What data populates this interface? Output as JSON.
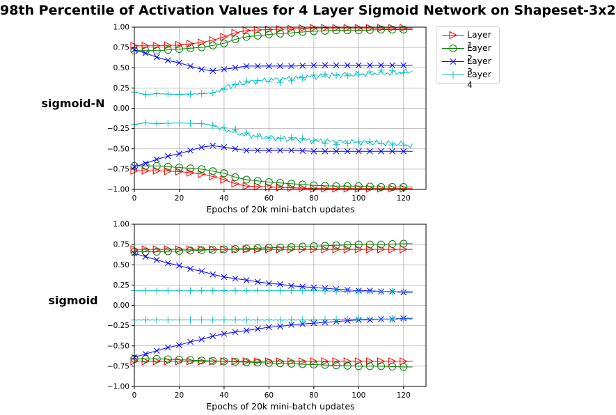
{
  "title": "98th Percentile of Activation Values for 4 Layer Sigmoid Network on Shapeset-3x2",
  "colors": {
    "Layer 1": "#ff0000",
    "Layer 2": "#008000",
    "Layer 3": "#0000ff",
    "Layer 4": "#00bfbf",
    "black": "#000000"
  },
  "chart_data": [
    {
      "type": "line",
      "row_label": "sigmoid-N",
      "xlabel": "Epochs of 20k mini-batch updates",
      "ylabel": "",
      "xlim": [
        0,
        130
      ],
      "ylim": [
        -1.0,
        1.0
      ],
      "xticks": [
        0,
        20,
        40,
        60,
        80,
        100,
        120
      ],
      "yticks": [
        -1.0,
        -0.75,
        -0.5,
        -0.25,
        0.0,
        0.25,
        0.5,
        0.75,
        1.0
      ],
      "xtick_labels": [
        "0",
        "20",
        "40",
        "60",
        "80",
        "100",
        "120"
      ],
      "ytick_labels": [
        "−1.00",
        "−0.75",
        "−0.50",
        "−0.25",
        "0.00",
        "0.25",
        "0.50",
        "0.75",
        "1.00"
      ],
      "grid": true,
      "legend": {
        "position": "outside-right",
        "entries": [
          "Layer 1",
          "Layer 2",
          "Layer 3",
          "Layer 4"
        ]
      },
      "series": [
        {
          "name": "Layer 1",
          "marker": "triangle-right",
          "upper": [
            [
              0,
              0.77
            ],
            [
              10,
              0.77
            ],
            [
              20,
              0.78
            ],
            [
              30,
              0.81
            ],
            [
              35,
              0.84
            ],
            [
              40,
              0.88
            ],
            [
              45,
              0.93
            ],
            [
              50,
              0.96
            ],
            [
              60,
              0.97
            ],
            [
              70,
              0.98
            ],
            [
              80,
              0.99
            ],
            [
              90,
              0.99
            ],
            [
              100,
              0.99
            ],
            [
              110,
              0.99
            ],
            [
              120,
              0.99
            ],
            [
              124,
              0.99
            ]
          ],
          "lower": [
            [
              0,
              -0.77
            ],
            [
              10,
              -0.77
            ],
            [
              20,
              -0.78
            ],
            [
              30,
              -0.81
            ],
            [
              35,
              -0.84
            ],
            [
              40,
              -0.88
            ],
            [
              45,
              -0.93
            ],
            [
              50,
              -0.96
            ],
            [
              60,
              -0.97
            ],
            [
              70,
              -0.98
            ],
            [
              80,
              -0.99
            ],
            [
              90,
              -0.99
            ],
            [
              100,
              -0.99
            ],
            [
              110,
              -0.99
            ],
            [
              120,
              -0.99
            ],
            [
              124,
              -0.99
            ]
          ]
        },
        {
          "name": "Layer 2",
          "marker": "circle",
          "upper": [
            [
              0,
              0.71
            ],
            [
              10,
              0.71
            ],
            [
              20,
              0.73
            ],
            [
              30,
              0.75
            ],
            [
              40,
              0.8
            ],
            [
              45,
              0.85
            ],
            [
              50,
              0.88
            ],
            [
              60,
              0.91
            ],
            [
              70,
              0.93
            ],
            [
              80,
              0.95
            ],
            [
              90,
              0.96
            ],
            [
              100,
              0.96
            ],
            [
              110,
              0.97
            ],
            [
              120,
              0.97
            ],
            [
              124,
              0.97
            ]
          ],
          "lower": [
            [
              0,
              -0.71
            ],
            [
              10,
              -0.71
            ],
            [
              20,
              -0.73
            ],
            [
              30,
              -0.75
            ],
            [
              40,
              -0.8
            ],
            [
              45,
              -0.85
            ],
            [
              50,
              -0.88
            ],
            [
              60,
              -0.91
            ],
            [
              70,
              -0.93
            ],
            [
              80,
              -0.95
            ],
            [
              90,
              -0.96
            ],
            [
              100,
              -0.96
            ],
            [
              110,
              -0.97
            ],
            [
              120,
              -0.97
            ],
            [
              124,
              -0.97
            ]
          ]
        },
        {
          "name": "Layer 3",
          "marker": "x",
          "upper": [
            [
              0,
              0.72
            ],
            [
              5,
              0.68
            ],
            [
              10,
              0.63
            ],
            [
              15,
              0.59
            ],
            [
              20,
              0.56
            ],
            [
              25,
              0.52
            ],
            [
              30,
              0.48
            ],
            [
              35,
              0.46
            ],
            [
              40,
              0.48
            ],
            [
              45,
              0.5
            ],
            [
              50,
              0.52
            ],
            [
              60,
              0.52
            ],
            [
              70,
              0.52
            ],
            [
              80,
              0.53
            ],
            [
              90,
              0.53
            ],
            [
              100,
              0.53
            ],
            [
              110,
              0.53
            ],
            [
              120,
              0.53
            ],
            [
              124,
              0.53
            ]
          ],
          "lower": [
            [
              0,
              -0.72
            ],
            [
              5,
              -0.68
            ],
            [
              10,
              -0.63
            ],
            [
              15,
              -0.59
            ],
            [
              20,
              -0.56
            ],
            [
              25,
              -0.52
            ],
            [
              30,
              -0.48
            ],
            [
              35,
              -0.46
            ],
            [
              40,
              -0.48
            ],
            [
              45,
              -0.5
            ],
            [
              50,
              -0.52
            ],
            [
              60,
              -0.52
            ],
            [
              70,
              -0.52
            ],
            [
              80,
              -0.53
            ],
            [
              90,
              -0.53
            ],
            [
              100,
              -0.53
            ],
            [
              110,
              -0.53
            ],
            [
              120,
              -0.53
            ],
            [
              124,
              -0.53
            ]
          ]
        },
        {
          "name": "Layer 4",
          "marker": "plus",
          "upper": [
            [
              0,
              0.2
            ],
            [
              5,
              0.17
            ],
            [
              10,
              0.18
            ],
            [
              20,
              0.17
            ],
            [
              30,
              0.18
            ],
            [
              35,
              0.19
            ],
            [
              40,
              0.25
            ],
            [
              45,
              0.29
            ],
            [
              50,
              0.32
            ],
            [
              60,
              0.35
            ],
            [
              70,
              0.37
            ],
            [
              80,
              0.39
            ],
            [
              90,
              0.41
            ],
            [
              100,
              0.42
            ],
            [
              110,
              0.43
            ],
            [
              120,
              0.44
            ],
            [
              124,
              0.46
            ]
          ],
          "lower": [
            [
              0,
              -0.2
            ],
            [
              5,
              -0.18
            ],
            [
              10,
              -0.19
            ],
            [
              20,
              -0.18
            ],
            [
              30,
              -0.19
            ],
            [
              35,
              -0.21
            ],
            [
              40,
              -0.26
            ],
            [
              45,
              -0.3
            ],
            [
              50,
              -0.33
            ],
            [
              60,
              -0.36
            ],
            [
              70,
              -0.38
            ],
            [
              80,
              -0.4
            ],
            [
              90,
              -0.41
            ],
            [
              100,
              -0.42
            ],
            [
              110,
              -0.43
            ],
            [
              120,
              -0.44
            ],
            [
              124,
              -0.47
            ]
          ]
        }
      ]
    },
    {
      "type": "line",
      "row_label": "sigmoid",
      "xlabel": "Epochs of 20k mini-batch updates",
      "ylabel": "",
      "xlim": [
        0,
        130
      ],
      "ylim": [
        -1.0,
        1.0
      ],
      "xticks": [
        0,
        20,
        40,
        60,
        80,
        100,
        120
      ],
      "yticks": [
        -1.0,
        -0.75,
        -0.5,
        -0.25,
        0.0,
        0.25,
        0.5,
        0.75,
        1.0
      ],
      "xtick_labels": [
        "0",
        "20",
        "40",
        "60",
        "80",
        "100",
        "120"
      ],
      "ytick_labels": [
        "−1.00",
        "−0.75",
        "−0.50",
        "−0.25",
        "0.00",
        "0.25",
        "0.50",
        "0.75",
        "1.00"
      ],
      "grid": true,
      "series": [
        {
          "name": "Layer 1",
          "marker": "triangle-right",
          "upper": [
            [
              0,
              0.69
            ],
            [
              20,
              0.69
            ],
            [
              40,
              0.69
            ],
            [
              60,
              0.69
            ],
            [
              80,
              0.69
            ],
            [
              100,
              0.69
            ],
            [
              124,
              0.69
            ]
          ],
          "lower": [
            [
              0,
              -0.69
            ],
            [
              20,
              -0.69
            ],
            [
              40,
              -0.69
            ],
            [
              60,
              -0.69
            ],
            [
              80,
              -0.69
            ],
            [
              100,
              -0.69
            ],
            [
              124,
              -0.69
            ]
          ]
        },
        {
          "name": "Layer 2",
          "marker": "circle",
          "upper": [
            [
              0,
              0.66
            ],
            [
              10,
              0.66
            ],
            [
              20,
              0.67
            ],
            [
              30,
              0.68
            ],
            [
              40,
              0.69
            ],
            [
              50,
              0.7
            ],
            [
              60,
              0.71
            ],
            [
              70,
              0.72
            ],
            [
              80,
              0.73
            ],
            [
              90,
              0.74
            ],
            [
              100,
              0.75
            ],
            [
              110,
              0.75
            ],
            [
              120,
              0.76
            ],
            [
              124,
              0.76
            ]
          ],
          "lower": [
            [
              0,
              -0.66
            ],
            [
              10,
              -0.66
            ],
            [
              20,
              -0.67
            ],
            [
              30,
              -0.68
            ],
            [
              40,
              -0.69
            ],
            [
              50,
              -0.7
            ],
            [
              60,
              -0.71
            ],
            [
              70,
              -0.72
            ],
            [
              80,
              -0.73
            ],
            [
              90,
              -0.74
            ],
            [
              100,
              -0.75
            ],
            [
              110,
              -0.75
            ],
            [
              120,
              -0.76
            ],
            [
              124,
              -0.76
            ]
          ]
        },
        {
          "name": "Layer 3",
          "marker": "x",
          "upper": [
            [
              0,
              0.64
            ],
            [
              5,
              0.6
            ],
            [
              10,
              0.56
            ],
            [
              15,
              0.52
            ],
            [
              20,
              0.49
            ],
            [
              25,
              0.45
            ],
            [
              30,
              0.42
            ],
            [
              35,
              0.38
            ],
            [
              40,
              0.35
            ],
            [
              45,
              0.33
            ],
            [
              50,
              0.31
            ],
            [
              55,
              0.29
            ],
            [
              60,
              0.27
            ],
            [
              65,
              0.26
            ],
            [
              70,
              0.24
            ],
            [
              75,
              0.23
            ],
            [
              80,
              0.22
            ],
            [
              85,
              0.21
            ],
            [
              90,
              0.2
            ],
            [
              95,
              0.19
            ],
            [
              100,
              0.18
            ],
            [
              105,
              0.18
            ],
            [
              110,
              0.17
            ],
            [
              115,
              0.17
            ],
            [
              120,
              0.16
            ],
            [
              124,
              0.16
            ]
          ],
          "lower": [
            [
              0,
              -0.64
            ],
            [
              5,
              -0.6
            ],
            [
              10,
              -0.56
            ],
            [
              15,
              -0.52
            ],
            [
              20,
              -0.49
            ],
            [
              25,
              -0.45
            ],
            [
              30,
              -0.42
            ],
            [
              35,
              -0.38
            ],
            [
              40,
              -0.35
            ],
            [
              45,
              -0.33
            ],
            [
              50,
              -0.31
            ],
            [
              55,
              -0.29
            ],
            [
              60,
              -0.27
            ],
            [
              65,
              -0.26
            ],
            [
              70,
              -0.24
            ],
            [
              75,
              -0.23
            ],
            [
              80,
              -0.22
            ],
            [
              85,
              -0.21
            ],
            [
              90,
              -0.2
            ],
            [
              95,
              -0.19
            ],
            [
              100,
              -0.18
            ],
            [
              105,
              -0.18
            ],
            [
              110,
              -0.17
            ],
            [
              115,
              -0.17
            ],
            [
              120,
              -0.16
            ],
            [
              124,
              -0.16
            ]
          ]
        },
        {
          "name": "Layer 4",
          "marker": "plus",
          "upper": [
            [
              0,
              0.18
            ],
            [
              20,
              0.18
            ],
            [
              40,
              0.18
            ],
            [
              60,
              0.18
            ],
            [
              80,
              0.18
            ],
            [
              100,
              0.17
            ],
            [
              124,
              0.17
            ]
          ],
          "lower": [
            [
              0,
              -0.18
            ],
            [
              20,
              -0.18
            ],
            [
              40,
              -0.18
            ],
            [
              60,
              -0.18
            ],
            [
              80,
              -0.18
            ],
            [
              100,
              -0.17
            ],
            [
              124,
              -0.17
            ]
          ]
        }
      ]
    }
  ]
}
